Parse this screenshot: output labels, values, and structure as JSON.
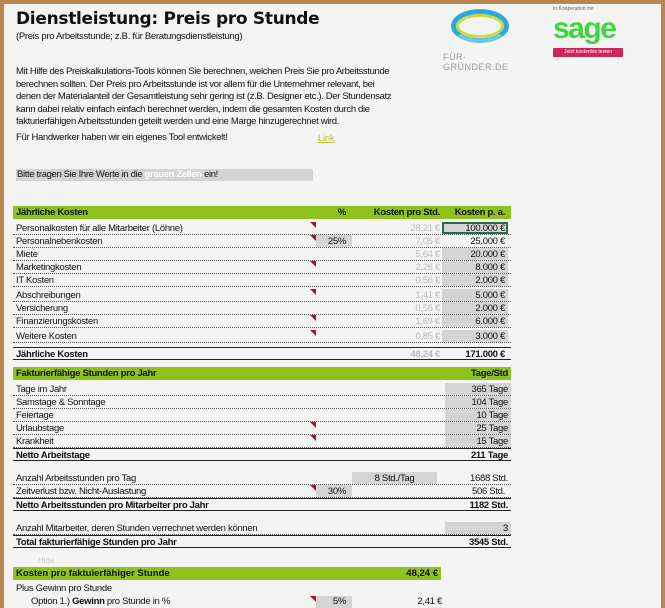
{
  "header": {
    "title": "Dienstleistung: Preis pro Stunde",
    "subtitle": "(Preis pro Arbeitsstunde; z.B. für Beratungsdienstleistung)"
  },
  "logos": {
    "fuer_gruender": "FÜR-GRÜNDER.DE",
    "sage_caption": "In Kooperation mit",
    "sage": "sage",
    "sage_button": "Jetzt kostenlos testen",
    "sage_color": "#3ed63e",
    "button_color": "#d0245e"
  },
  "intro": "Mit Hilfe des Preiskalkulations-Tools können Sie berechnen, welchen Preis Sie pro Arbeitsstunde berechnen sollten. Der Preis pro Arbeitsstunde ist vor allem für die Unternehmer relevant, bei denen der Materialanteil der Gesamtleistung sehr gering ist (z.B. Designer etc.). Der Stundensatz kann dabei relativ einfach einfach berechnet werden, indem die gesamten Kosten durch die fakturierfähigen Arbeitsstunden geteilt werden und eine Marge hinzugerechnet wird.",
  "tool_note": "Für Handwerker haben wir ein eigenes Tool entwickelt!",
  "tool_link": "Link",
  "hint": {
    "pre": "Bitte tragen Sie Ihre Werte in die ",
    "white": "grauen Zellen",
    "post": " ein!"
  },
  "costs": {
    "headers": {
      "label": "Jährliche Kosten",
      "pct": "%",
      "per_hour": "Kosten pro Std.",
      "per_year": "Kosten p. a."
    },
    "rows": [
      {
        "label": "Personalkosten für alle Mitarbeiter (Löhne)",
        "pct": "",
        "per_hour": "28,21 €",
        "per_year": "100.000 €"
      },
      {
        "label": "Personalnebenkosten",
        "pct": "25%",
        "per_hour": "7,05 €",
        "per_year": "25.000 €"
      },
      {
        "label": "Miete",
        "pct": "",
        "per_hour": "5,64 €",
        "per_year": "20.000 €"
      },
      {
        "label": "Marketingkosten",
        "pct": "",
        "per_hour": "2,26 €",
        "per_year": "8.000 €"
      },
      {
        "label": "IT Kosten",
        "pct": "",
        "per_hour": "0,56 €",
        "per_year": "2.000 €"
      },
      {
        "label": "Abschreibungen",
        "pct": "",
        "per_hour": "1,41 €",
        "per_year": "5.000 €"
      },
      {
        "label": "Versicherung",
        "pct": "",
        "per_hour": "0,56 €",
        "per_year": "2.000 €"
      },
      {
        "label": "Finanzierungskosten",
        "pct": "",
        "per_hour": "1,69 €",
        "per_year": "6.000 €"
      },
      {
        "label": "Weitere Kosten",
        "pct": "",
        "per_hour": "0,85 €",
        "per_year": "3.000 €"
      }
    ],
    "total": {
      "label": "Jährliche Kosten",
      "per_hour": "48,24 €",
      "per_year": "171.000 €"
    }
  },
  "hours": {
    "header": "Fakturierfähige Stunden pro Jahr",
    "unit_header": "Tage/Std",
    "rows": [
      {
        "label": "Tage im Jahr",
        "value": "365 Tage"
      },
      {
        "label": "Samstage & Sonntage",
        "value": "104 Tage"
      },
      {
        "label": "Feiertage",
        "value": "10 Tage"
      },
      {
        "label": "Urlaubstage",
        "value": "25 Tage"
      },
      {
        "label": "Krankheit",
        "value": "15 Tage"
      }
    ],
    "net_days": {
      "label": "Netto Arbeitstage",
      "value": "211 Tage"
    },
    "hours_per_day": {
      "label": "Anzahl Arbeitsstunden pro Tag",
      "input": "8 Std./Tag",
      "value": "1688 Std."
    },
    "time_loss": {
      "label": "Zeitverlust bzw. Nicht-Auslastung",
      "pct": "30%",
      "value": "506 Std."
    },
    "net_hours": {
      "label": "Netto Arbeitsstunden pro Mitarbeiter pro Jahr",
      "value": "1182 Std."
    },
    "employees": {
      "label": "Anzahl Mitarbeiter, deren Stunden verrechnet werden können",
      "value": "3"
    },
    "total": {
      "label": "Total fakturierfähige Stunden pro Jahr",
      "value": "3545 Std."
    }
  },
  "hidden_label": "Hide",
  "cost_per_hour": {
    "label": "Kosten pro faktuierfähiger Stunde",
    "value": "48,24 €"
  },
  "profit": {
    "label": "Plus Gewinn pro Stunde",
    "option1_pre": "Option 1.) ",
    "option1_bold": "Gewinn",
    "option1_post": " pro Stunde in %",
    "pct": "5%",
    "value": "2,41 €"
  },
  "colors": {
    "accent_green": "#8ec21c",
    "input_gray": "#d4d4d4",
    "comment_marker": "#a0182a"
  }
}
